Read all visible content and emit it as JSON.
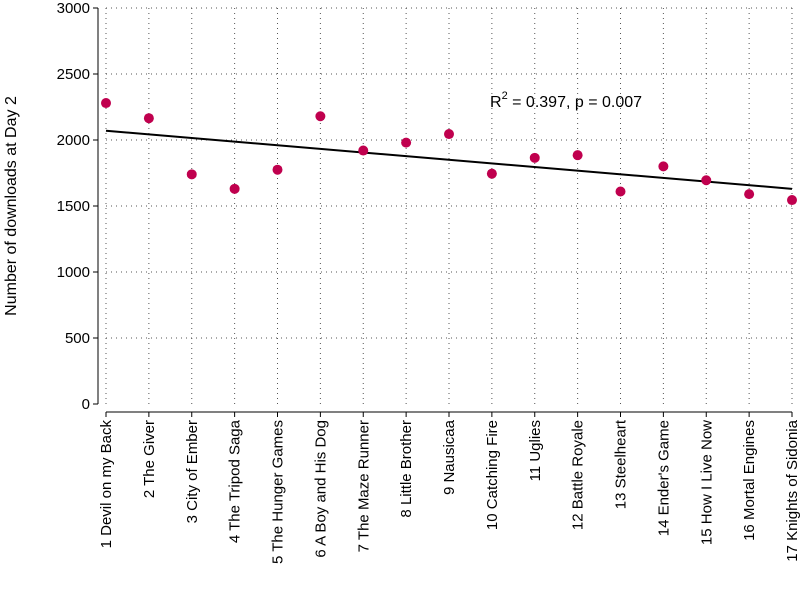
{
  "chart_data": {
    "type": "scatter",
    "title": "",
    "xlabel": "",
    "ylabel": "Number of downloads at Day 2",
    "ylim": [
      0,
      3000
    ],
    "yticks": [
      0,
      500,
      1000,
      1500,
      2000,
      2500,
      3000
    ],
    "grid": true,
    "categories": [
      "1 Devil on my Back",
      "2 The Giver",
      "3 City of Ember",
      "4 The Tripod Saga",
      "5 The Hunger Games",
      "6 A Boy and His Dog",
      "7 The Maze Runner",
      "8 Little Brother",
      "9 Nausicaa",
      "10 Catching Fire",
      "11 Uglies",
      "12 Battle Royale",
      "13 Steelheart",
      "14 Ender's Game",
      "15 How I Live Now",
      "16 Mortal Engines",
      "17 Knights of Sidonia"
    ],
    "values": [
      2280,
      2165,
      1740,
      1630,
      1775,
      2180,
      1920,
      1980,
      2045,
      1745,
      1865,
      1885,
      1610,
      1800,
      1695,
      1590,
      1545
    ],
    "marker_color": "#c0004e",
    "trendline": {
      "start": 2070,
      "end": 1630,
      "color": "#000000"
    },
    "annotation": {
      "prefix": "R",
      "sup": "2",
      "suffix": " = 0.397, p = 0.007"
    }
  }
}
